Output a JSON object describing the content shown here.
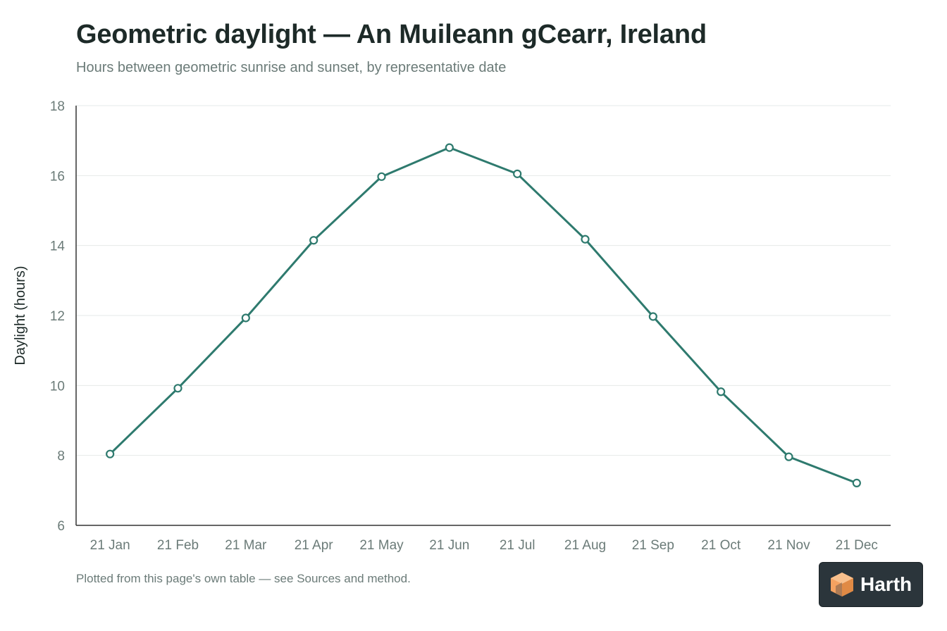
{
  "title": "Geometric daylight — An Muileann gCearr, Ireland",
  "subtitle": "Hours between geometric sunrise and sunset, by representative date",
  "footnote": "Plotted from this page's own table — see Sources and method.",
  "brand": {
    "name": "Harth",
    "icon": "cube-logo-icon",
    "accent": "#f4a261"
  },
  "colors": {
    "line": "#2e7a6e",
    "grid": "#e6e9e8",
    "axis": "#333333",
    "tick_text": "#6b7b78"
  },
  "chart_data": {
    "type": "line",
    "categories": [
      "21 Jan",
      "21 Feb",
      "21 Mar",
      "21 Apr",
      "21 May",
      "21 Jun",
      "21 Jul",
      "21 Aug",
      "21 Sep",
      "21 Oct",
      "21 Nov",
      "21 Dec"
    ],
    "series": [
      {
        "values": [
          8.04,
          9.92,
          11.93,
          14.15,
          15.97,
          16.8,
          16.05,
          14.18,
          11.97,
          9.82,
          7.96,
          7.21
        ]
      }
    ],
    "ylabel": "Daylight (hours)",
    "xlabel": "",
    "ylim": [
      6,
      18
    ],
    "yticks": [
      6,
      8,
      10,
      12,
      14,
      16,
      18
    ],
    "grid": true,
    "legend": "none"
  }
}
